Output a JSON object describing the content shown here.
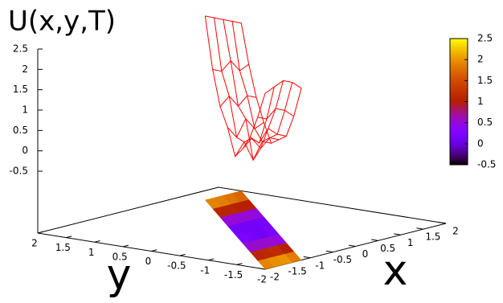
{
  "chart_data": {
    "type": "surface",
    "title": "U(x,y,T)",
    "x_label": "x",
    "y_label": "y",
    "color": "#ff0000",
    "xlim": [
      -2,
      2
    ],
    "xticks": [
      -2,
      -1.5,
      -1,
      -0.5,
      0,
      0.5,
      1,
      1.5,
      2
    ],
    "ylim": [
      -2,
      2
    ],
    "yticks": [
      -2,
      -1.5,
      -1,
      -0.5,
      0,
      0.5,
      1,
      1.5,
      2
    ],
    "zlim": [
      -0.5,
      2.5
    ],
    "zticks": [
      -0.5,
      0,
      0.5,
      1,
      1.5,
      2,
      2.5
    ],
    "cblim": [
      -0.5,
      2.5
    ],
    "cbticks": [
      -0.5,
      0,
      0.5,
      1,
      1.5,
      2,
      2.5
    ],
    "x": [
      [
        -2,
        -1.8,
        -1.6,
        -1.4,
        -1.2
      ],
      [
        -1.6,
        -1.4,
        -1.2,
        -1,
        -0.8
      ],
      [
        -1.2,
        -1,
        -0.8,
        -0.6,
        -0.4
      ],
      [
        -0.8,
        -0.6,
        -0.4,
        -0.2,
        0
      ],
      [
        -0.4,
        -0.2,
        0,
        0.2,
        0.4
      ],
      [
        0,
        0.2,
        0.4,
        0.6,
        0.8
      ],
      [
        0.4,
        0.6,
        0.8,
        1,
        1.2
      ],
      [
        0.8,
        1,
        1.2,
        1.4,
        1.6
      ],
      [
        1.2,
        1.4,
        1.6,
        1.8,
        2
      ]
    ],
    "y": [
      -2,
      -1.55,
      -1.1,
      -0.65,
      -0.2,
      0.25,
      0.7,
      1.15,
      1.6
    ],
    "z": [
      [
        2.3,
        2.4,
        2.5,
        2.4,
        2.2
      ],
      [
        1.5,
        1.4,
        1.6,
        1.5,
        1.3
      ],
      [
        0.8,
        0.6,
        0.9,
        0.7,
        0.6
      ],
      [
        0.3,
        0.5,
        0.2,
        0.4,
        0.3
      ],
      [
        -0.1,
        0.2,
        -0.3,
        0.1,
        0
      ],
      [
        0.4,
        0.1,
        0.5,
        0.2,
        0.3
      ],
      [
        0.7,
        0.9,
        0.6,
        0.8,
        0.7
      ],
      [
        1.4,
        1.3,
        1.5,
        1.2,
        1.3
      ],
      [
        2.5,
        2.4,
        2.3,
        2.2,
        2.1
      ]
    ]
  }
}
